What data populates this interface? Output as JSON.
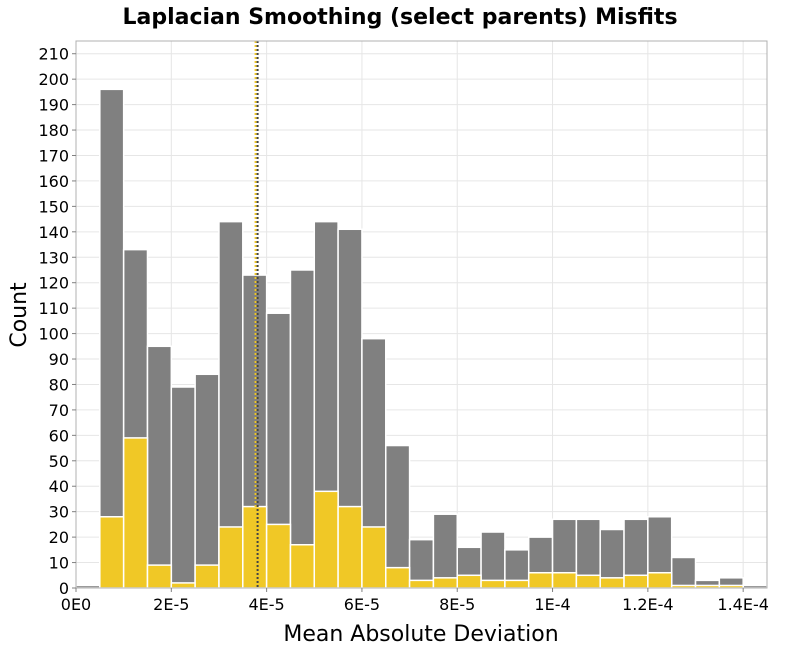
{
  "chart_data": {
    "type": "bar",
    "title": "Laplacian Smoothing (select parents) Misfits",
    "xlabel": "Mean Absolute Deviation",
    "ylabel": "Count",
    "xlim": [
      0,
      0.000145
    ],
    "ylim": [
      0,
      215
    ],
    "bin_width": 5e-06,
    "bin_starts": [
      0,
      5e-06,
      1e-05,
      1.5e-05,
      2e-05,
      2.5e-05,
      3e-05,
      3.5e-05,
      4e-05,
      4.5e-05,
      5e-05,
      5.5e-05,
      6e-05,
      6.5e-05,
      7e-05,
      7.5e-05,
      8e-05,
      8.5e-05,
      9e-05,
      9.5e-05,
      0.0001,
      0.000105,
      0.00011,
      0.000115,
      0.00012,
      0.000125,
      0.00013,
      0.000135,
      0.00014
    ],
    "series": [
      {
        "color": "#808080",
        "values": [
          1,
          196,
          133,
          95,
          79,
          84,
          144,
          123,
          108,
          125,
          144,
          141,
          98,
          56,
          19,
          29,
          16,
          22,
          15,
          20,
          27,
          27,
          23,
          27,
          28,
          12,
          3,
          4,
          1
        ]
      },
      {
        "color": "#f0c826",
        "values": [
          0,
          28,
          59,
          9,
          2,
          9,
          24,
          32,
          25,
          17,
          38,
          32,
          24,
          8,
          3,
          4,
          5,
          3,
          3,
          6,
          6,
          5,
          4,
          5,
          6,
          1,
          1,
          1,
          0
        ]
      }
    ],
    "reference_line": {
      "x": 3.8e-05,
      "colors": [
        "#f0c826",
        "#444444"
      ],
      "style": "dotted"
    },
    "xticks": [
      0,
      2e-05,
      4e-05,
      6e-05,
      8e-05,
      0.0001,
      0.00012,
      0.00014
    ],
    "xtick_labels": [
      "0E0",
      "2E-5",
      "4E-5",
      "6E-5",
      "8E-5",
      "1E-4",
      "1.2E-4",
      "1.4E-4"
    ],
    "yticks": [
      0,
      10,
      20,
      30,
      40,
      50,
      60,
      70,
      80,
      90,
      100,
      110,
      120,
      130,
      140,
      150,
      160,
      170,
      180,
      190,
      200,
      210
    ],
    "grid": true
  }
}
